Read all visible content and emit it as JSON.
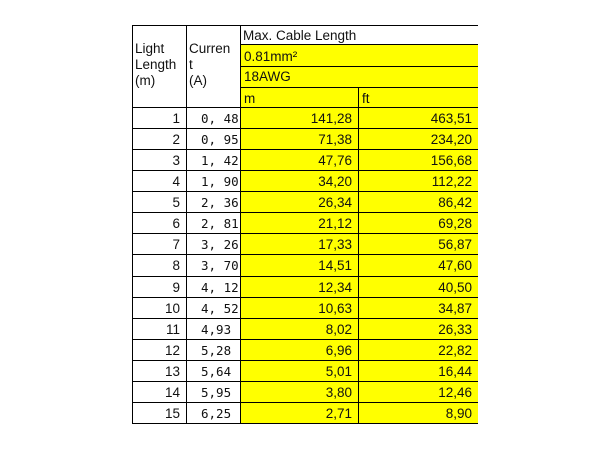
{
  "header": {
    "col1": [
      "Light",
      "Length",
      "(m)"
    ],
    "col2": [
      "Curren",
      "t",
      "(A)"
    ],
    "group_title": "Max. Cable Length",
    "cross_section": "0.81mm²",
    "gauge": "18AWG",
    "unit_m": "m",
    "unit_ft": "ft"
  },
  "highlight_color": "#ffff00",
  "rows": [
    {
      "length": "1",
      "current": "0, 48",
      "m": "141,28",
      "ft": "463,51"
    },
    {
      "length": "2",
      "current": "0, 95",
      "m": "71,38",
      "ft": "234,20"
    },
    {
      "length": "3",
      "current": "1, 42",
      "m": "47,76",
      "ft": "156,68"
    },
    {
      "length": "4",
      "current": "1, 90",
      "m": "34,20",
      "ft": "112,22"
    },
    {
      "length": "5",
      "current": "2, 36",
      "m": "26,34",
      "ft": "86,42"
    },
    {
      "length": "6",
      "current": "2, 81",
      "m": "21,12",
      "ft": "69,28"
    },
    {
      "length": "7",
      "current": "3, 26",
      "m": "17,33",
      "ft": "56,87"
    },
    {
      "length": "8",
      "current": "3, 70",
      "m": "14,51",
      "ft": "47,60"
    },
    {
      "length": "9",
      "current": "4, 12",
      "m": "12,34",
      "ft": "40,50"
    },
    {
      "length": "10",
      "current": "4, 52",
      "m": "10,63",
      "ft": "34,87"
    },
    {
      "length": "11",
      "current": "4,93",
      "m": "8,02",
      "ft": "26,33"
    },
    {
      "length": "12",
      "current": "5,28",
      "m": "6,96",
      "ft": "22,82"
    },
    {
      "length": "13",
      "current": "5,64",
      "m": "5,01",
      "ft": "16,44"
    },
    {
      "length": "14",
      "current": "5,95",
      "m": "3,80",
      "ft": "12,46"
    },
    {
      "length": "15",
      "current": "6,25",
      "m": "2,71",
      "ft": "8,90"
    }
  ]
}
